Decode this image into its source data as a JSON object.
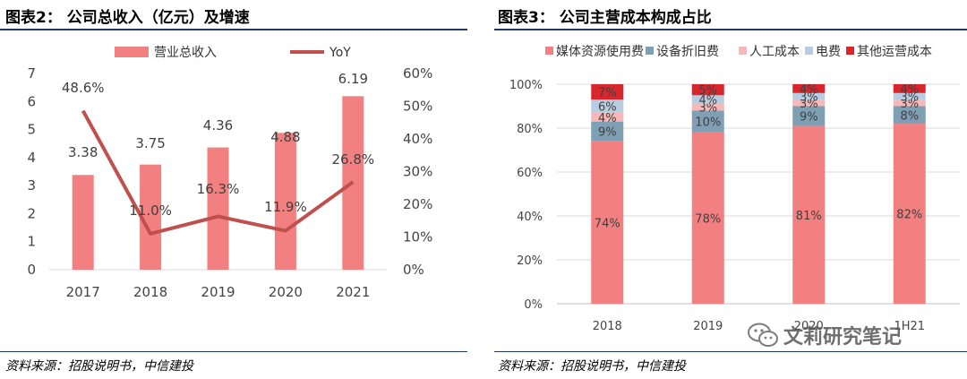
{
  "left_panel": {
    "title": "图表2： 公司总收入（亿元）及增速",
    "source": "资料来源：招股说明书，中信建投"
  },
  "right_panel": {
    "title": "图表3： 公司主营成本构成占比",
    "source": "资料来源：招股说明书，中信建投"
  },
  "watermark": {
    "text": "文莉研究笔记",
    "icon": "wechat-icon"
  },
  "chart_data": [
    {
      "type": "bar+line",
      "title": "公司总收入（亿元）及增速",
      "categories": [
        "2017",
        "2018",
        "2019",
        "2020",
        "2021"
      ],
      "series": [
        {
          "name": "营业总收入",
          "type": "bar",
          "axis": "left",
          "values": [
            3.38,
            3.75,
            4.36,
            4.88,
            6.19
          ],
          "labels": [
            "3.38",
            "3.75",
            "4.36",
            "4.88",
            "6.19"
          ],
          "color": "#f28080"
        },
        {
          "name": "YoY",
          "type": "line",
          "axis": "right",
          "values": [
            48.6,
            11.0,
            16.3,
            11.9,
            26.8
          ],
          "labels": [
            "48.6%",
            "11.0%",
            "16.3%",
            "11.9%",
            "26.8%"
          ],
          "color": "#c0504d"
        }
      ],
      "y_left": {
        "min": 0,
        "max": 7,
        "ticks": [
          "0",
          "1",
          "2",
          "3",
          "4",
          "5",
          "6",
          "7"
        ]
      },
      "y_right": {
        "min": 0,
        "max": 60,
        "ticks": [
          "0%",
          "10%",
          "20%",
          "30%",
          "40%",
          "50%",
          "60%"
        ]
      },
      "legend_position": "top"
    },
    {
      "type": "stacked_bar",
      "title": "公司主营成本构成占比",
      "categories": [
        "2018",
        "2019",
        "2020",
        "1H21"
      ],
      "series": [
        {
          "name": "媒体资源使用费",
          "values": [
            74,
            78,
            81,
            82
          ],
          "labels": [
            "74%",
            "78%",
            "81%",
            "82%"
          ],
          "color": "#f28080"
        },
        {
          "name": "设备折旧费",
          "values": [
            9,
            10,
            9,
            8
          ],
          "labels": [
            "9%",
            "10%",
            "9%",
            "8%"
          ],
          "color": "#7f9fb5"
        },
        {
          "name": "人工成本",
          "values": [
            4,
            3,
            3,
            3
          ],
          "labels": [
            "4%",
            "3%",
            "3%",
            "3%"
          ],
          "color": "#f6b8b8"
        },
        {
          "name": "电费",
          "values": [
            6,
            4,
            3,
            3
          ],
          "labels": [
            "6%",
            "4%",
            "3%",
            "3%"
          ],
          "color": "#b8cde0"
        },
        {
          "name": "其他运营成本",
          "values": [
            7,
            5,
            4,
            4
          ],
          "labels": [
            "7%",
            "5%",
            "4%",
            "4%"
          ],
          "color": "#d9262d"
        }
      ],
      "y_axis": {
        "min": 0,
        "max": 100,
        "ticks": [
          "0%",
          "20%",
          "40%",
          "60%",
          "80%",
          "100%"
        ]
      },
      "legend_position": "top"
    }
  ]
}
